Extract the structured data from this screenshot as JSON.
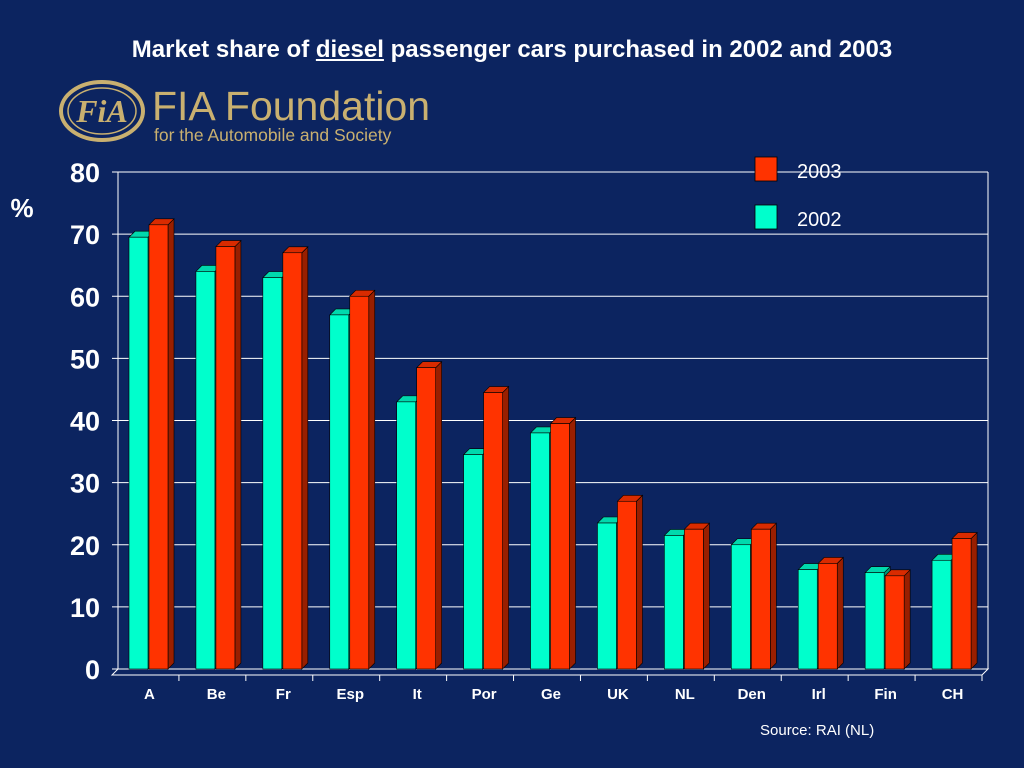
{
  "page": {
    "title_before": "Market share of ",
    "title_emph": "diesel",
    "title_after": " passenger cars purchased in 2002 and 2003",
    "source": "Source: RAI (NL)"
  },
  "logo": {
    "emblem": "FiA",
    "name": "FIA Foundation",
    "tagline": "for the Automobile and Society",
    "color": "#c9b070"
  },
  "colors": {
    "background": "#0c2460",
    "grid": "#ffffff",
    "series_2003": "#ff3300",
    "series_2002": "#00ffcc"
  },
  "chart_data": {
    "type": "bar",
    "ylabel": "%",
    "ylim": [
      0,
      80
    ],
    "yticks": [
      0,
      10,
      20,
      30,
      40,
      50,
      60,
      70,
      80
    ],
    "grid": true,
    "legend_position": "top-right",
    "categories": [
      "A",
      "Be",
      "Fr",
      "Esp",
      "It",
      "Por",
      "Ge",
      "UK",
      "NL",
      "Den",
      "Irl",
      "Fin",
      "CH"
    ],
    "series": [
      {
        "name": "2002",
        "values": [
          69.5,
          64,
          63,
          57,
          43,
          34.5,
          38,
          23.5,
          21.5,
          20,
          16,
          15.5,
          17.5
        ]
      },
      {
        "name": "2003",
        "values": [
          71.5,
          68,
          67,
          60,
          48.5,
          44.5,
          39.5,
          27,
          22.5,
          22.5,
          17,
          15,
          21
        ]
      }
    ],
    "legend": [
      {
        "label": "2003",
        "series": "2003"
      },
      {
        "label": "2002",
        "series": "2002"
      }
    ]
  }
}
